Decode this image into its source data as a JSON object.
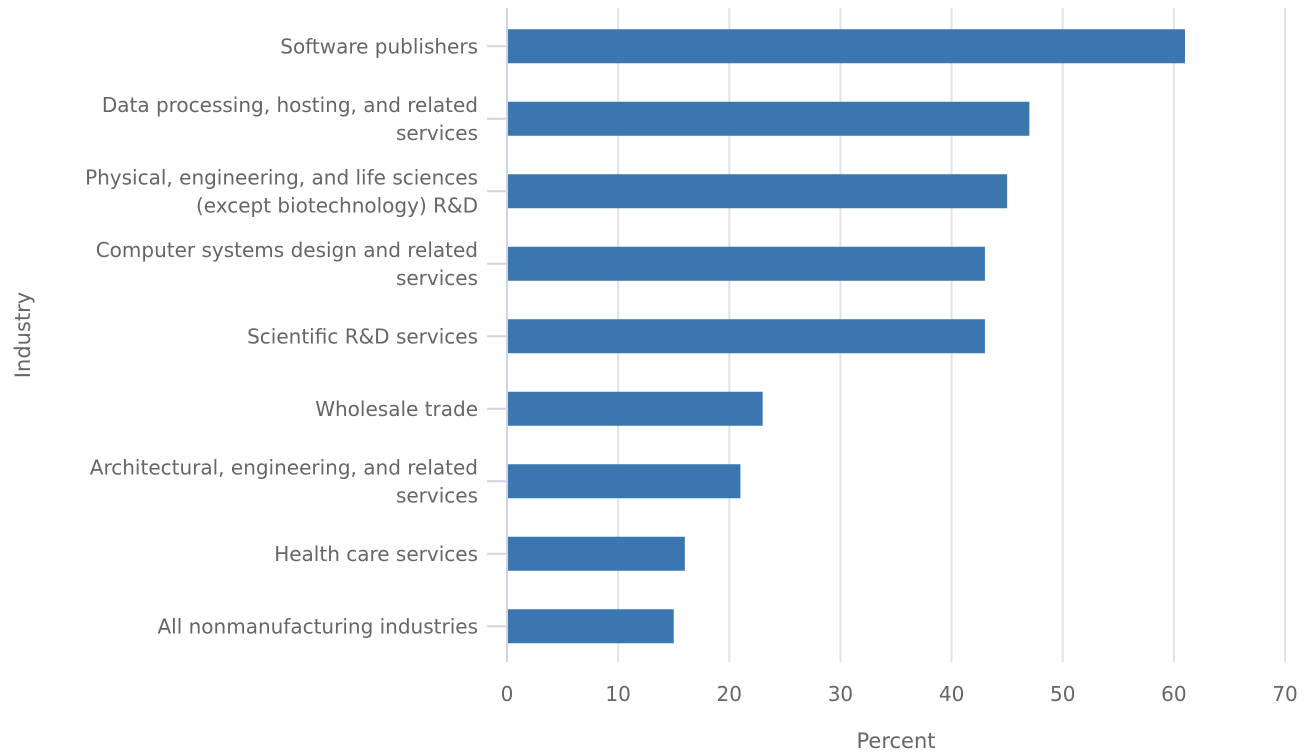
{
  "chart_data": {
    "type": "bar",
    "orientation": "horizontal",
    "xlabel": "Percent",
    "ylabel": "Industry",
    "xlim": [
      0,
      70
    ],
    "xticks": [
      0,
      10,
      20,
      30,
      40,
      50,
      60,
      70
    ],
    "grid": true,
    "bar_color": "#3a76af",
    "categories": [
      [
        "Software publishers"
      ],
      [
        "Data processing, hosting, and related",
        "services"
      ],
      [
        "Physical, engineering, and life sciences",
        "(except biotechnology) R&D"
      ],
      [
        "Computer systems design and related",
        "services"
      ],
      [
        "Scientific R&D services"
      ],
      [
        "Wholesale trade"
      ],
      [
        "Architectural, engineering, and related",
        "services"
      ],
      [
        "Health care services"
      ],
      [
        "All nonmanufacturing industries"
      ]
    ],
    "values": [
      61,
      47,
      45,
      43,
      43,
      23,
      21,
      16,
      15
    ]
  }
}
